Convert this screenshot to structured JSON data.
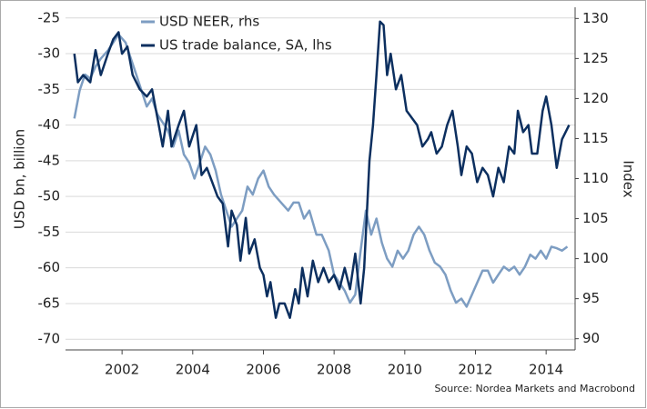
{
  "chart_data": {
    "type": "line",
    "y_label": "USD bn, billion",
    "y2_label": "Index",
    "source": "Source: Nordea Markets and Macrobond",
    "xlim": [
      2000.4,
      2014.82
    ],
    "xticks": [
      2002,
      2004,
      2006,
      2008,
      2010,
      2012,
      2014
    ],
    "ylim": [
      -71.5,
      -23.5
    ],
    "yticks": [
      -25,
      -30,
      -35,
      -40,
      -45,
      -50,
      -55,
      -60,
      -65,
      -70
    ],
    "y2lim": [
      88.6,
      131.4
    ],
    "y2ticks": [
      90,
      95,
      100,
      105,
      110,
      115,
      120,
      125,
      130
    ],
    "grid": true,
    "legend": "top",
    "series": [
      {
        "name": "USD NEER, rhs",
        "color": "#7d9dc2",
        "axis": "y2",
        "x": [
          2000.65,
          2000.8,
          2000.95,
          2001.1,
          2001.25,
          2001.4,
          2001.6,
          2001.75,
          2001.9,
          2002.1,
          2002.25,
          2002.4,
          2002.55,
          2002.7,
          2002.85,
          2003.0,
          2003.15,
          2003.3,
          2003.45,
          2003.6,
          2003.75,
          2003.9,
          2004.05,
          2004.2,
          2004.35,
          2004.5,
          2004.65,
          2004.8,
          2004.95,
          2005.1,
          2005.25,
          2005.4,
          2005.55,
          2005.7,
          2005.85,
          2006.0,
          2006.15,
          2006.3,
          2006.5,
          2006.7,
          2006.85,
          2007.0,
          2007.15,
          2007.3,
          2007.5,
          2007.65,
          2007.85,
          2008.0,
          2008.15,
          2008.3,
          2008.45,
          2008.6,
          2008.75,
          2008.9,
          2009.05,
          2009.2,
          2009.35,
          2009.5,
          2009.65,
          2009.8,
          2009.95,
          2010.1,
          2010.25,
          2010.4,
          2010.55,
          2010.7,
          2010.85,
          2011.0,
          2011.15,
          2011.3,
          2011.45,
          2011.6,
          2011.75,
          2011.9,
          2012.05,
          2012.2,
          2012.35,
          2012.5,
          2012.65,
          2012.8,
          2012.95,
          2013.1,
          2013.25,
          2013.4,
          2013.55,
          2013.7,
          2013.85,
          2014.0,
          2014.15,
          2014.3,
          2014.45,
          2014.6
        ],
        "values": [
          117.5,
          121,
          123,
          122.5,
          124,
          125,
          126,
          127,
          128,
          127,
          125,
          123,
          121,
          119,
          120,
          118,
          117,
          116,
          114,
          116,
          113,
          112,
          110,
          112,
          114,
          113,
          111,
          108,
          106,
          104,
          105,
          106,
          109,
          108,
          110,
          111,
          109,
          108,
          107,
          106,
          107,
          107,
          105,
          106,
          103,
          103,
          101,
          98,
          97,
          96,
          94.5,
          95.5,
          101,
          106,
          103,
          105,
          102,
          100,
          99,
          101,
          100,
          101,
          103,
          104,
          103,
          101,
          99.5,
          99,
          98,
          96,
          94.5,
          95,
          94,
          95.5,
          97,
          98.5,
          98.5,
          97,
          98,
          99,
          98.5,
          99,
          98,
          99,
          100.5,
          100,
          101,
          100,
          101.5,
          101.3,
          101,
          101.5
        ]
      },
      {
        "name": "US trade balance, SA, lhs",
        "color": "#0c2f5f",
        "axis": "y",
        "x": [
          2000.65,
          2000.75,
          2000.9,
          2001.1,
          2001.25,
          2001.4,
          2001.6,
          2001.75,
          2001.9,
          2002.0,
          2002.15,
          2002.3,
          2002.5,
          2002.7,
          2002.85,
          2003.0,
          2003.15,
          2003.3,
          2003.4,
          2003.6,
          2003.75,
          2003.9,
          2004.1,
          2004.25,
          2004.4,
          2004.55,
          2004.7,
          2004.85,
          2005.0,
          2005.1,
          2005.25,
          2005.35,
          2005.5,
          2005.6,
          2005.75,
          2005.9,
          2006.0,
          2006.1,
          2006.2,
          2006.35,
          2006.45,
          2006.6,
          2006.75,
          2006.9,
          2007.0,
          2007.1,
          2007.25,
          2007.4,
          2007.55,
          2007.7,
          2007.85,
          2008.0,
          2008.15,
          2008.3,
          2008.45,
          2008.6,
          2008.75,
          2008.85,
          2009.0,
          2009.1,
          2009.2,
          2009.3,
          2009.4,
          2009.5,
          2009.6,
          2009.75,
          2009.9,
          2010.05,
          2010.2,
          2010.35,
          2010.5,
          2010.65,
          2010.75,
          2010.9,
          2011.05,
          2011.2,
          2011.35,
          2011.5,
          2011.6,
          2011.75,
          2011.9,
          2012.05,
          2012.2,
          2012.35,
          2012.5,
          2012.65,
          2012.8,
          2012.95,
          2013.1,
          2013.2,
          2013.35,
          2013.5,
          2013.6,
          2013.75,
          2013.9,
          2014.0,
          2014.15,
          2014.3,
          2014.45,
          2014.55,
          2014.65
        ],
        "values": [
          -30,
          -34,
          -33,
          -34,
          -29.5,
          -33,
          -30,
          -28,
          -27,
          -30,
          -29,
          -33,
          -35,
          -36,
          -35,
          -39,
          -43,
          -38,
          -43,
          -40,
          -38,
          -43,
          -40,
          -47,
          -46,
          -48,
          -50,
          -51,
          -57,
          -52,
          -54,
          -59,
          -53,
          -58,
          -56,
          -60,
          -61,
          -64,
          -62,
          -67,
          -65,
          -65,
          -67,
          -63,
          -65,
          -60,
          -64,
          -59,
          -62,
          -60,
          -62,
          -61,
          -63,
          -60,
          -63,
          -58,
          -65,
          -60,
          -45,
          -40,
          -33,
          -25.5,
          -26,
          -33,
          -30,
          -35,
          -33,
          -38,
          -39,
          -40,
          -43,
          -42,
          -41,
          -44,
          -43,
          -40,
          -38,
          -43,
          -47,
          -43,
          -44,
          -48,
          -46,
          -47,
          -50,
          -46,
          -48,
          -43,
          -44,
          -38,
          -41,
          -40,
          -44,
          -44,
          -38,
          -36,
          -40,
          -46,
          -42,
          -41,
          -40
        ]
      }
    ]
  }
}
